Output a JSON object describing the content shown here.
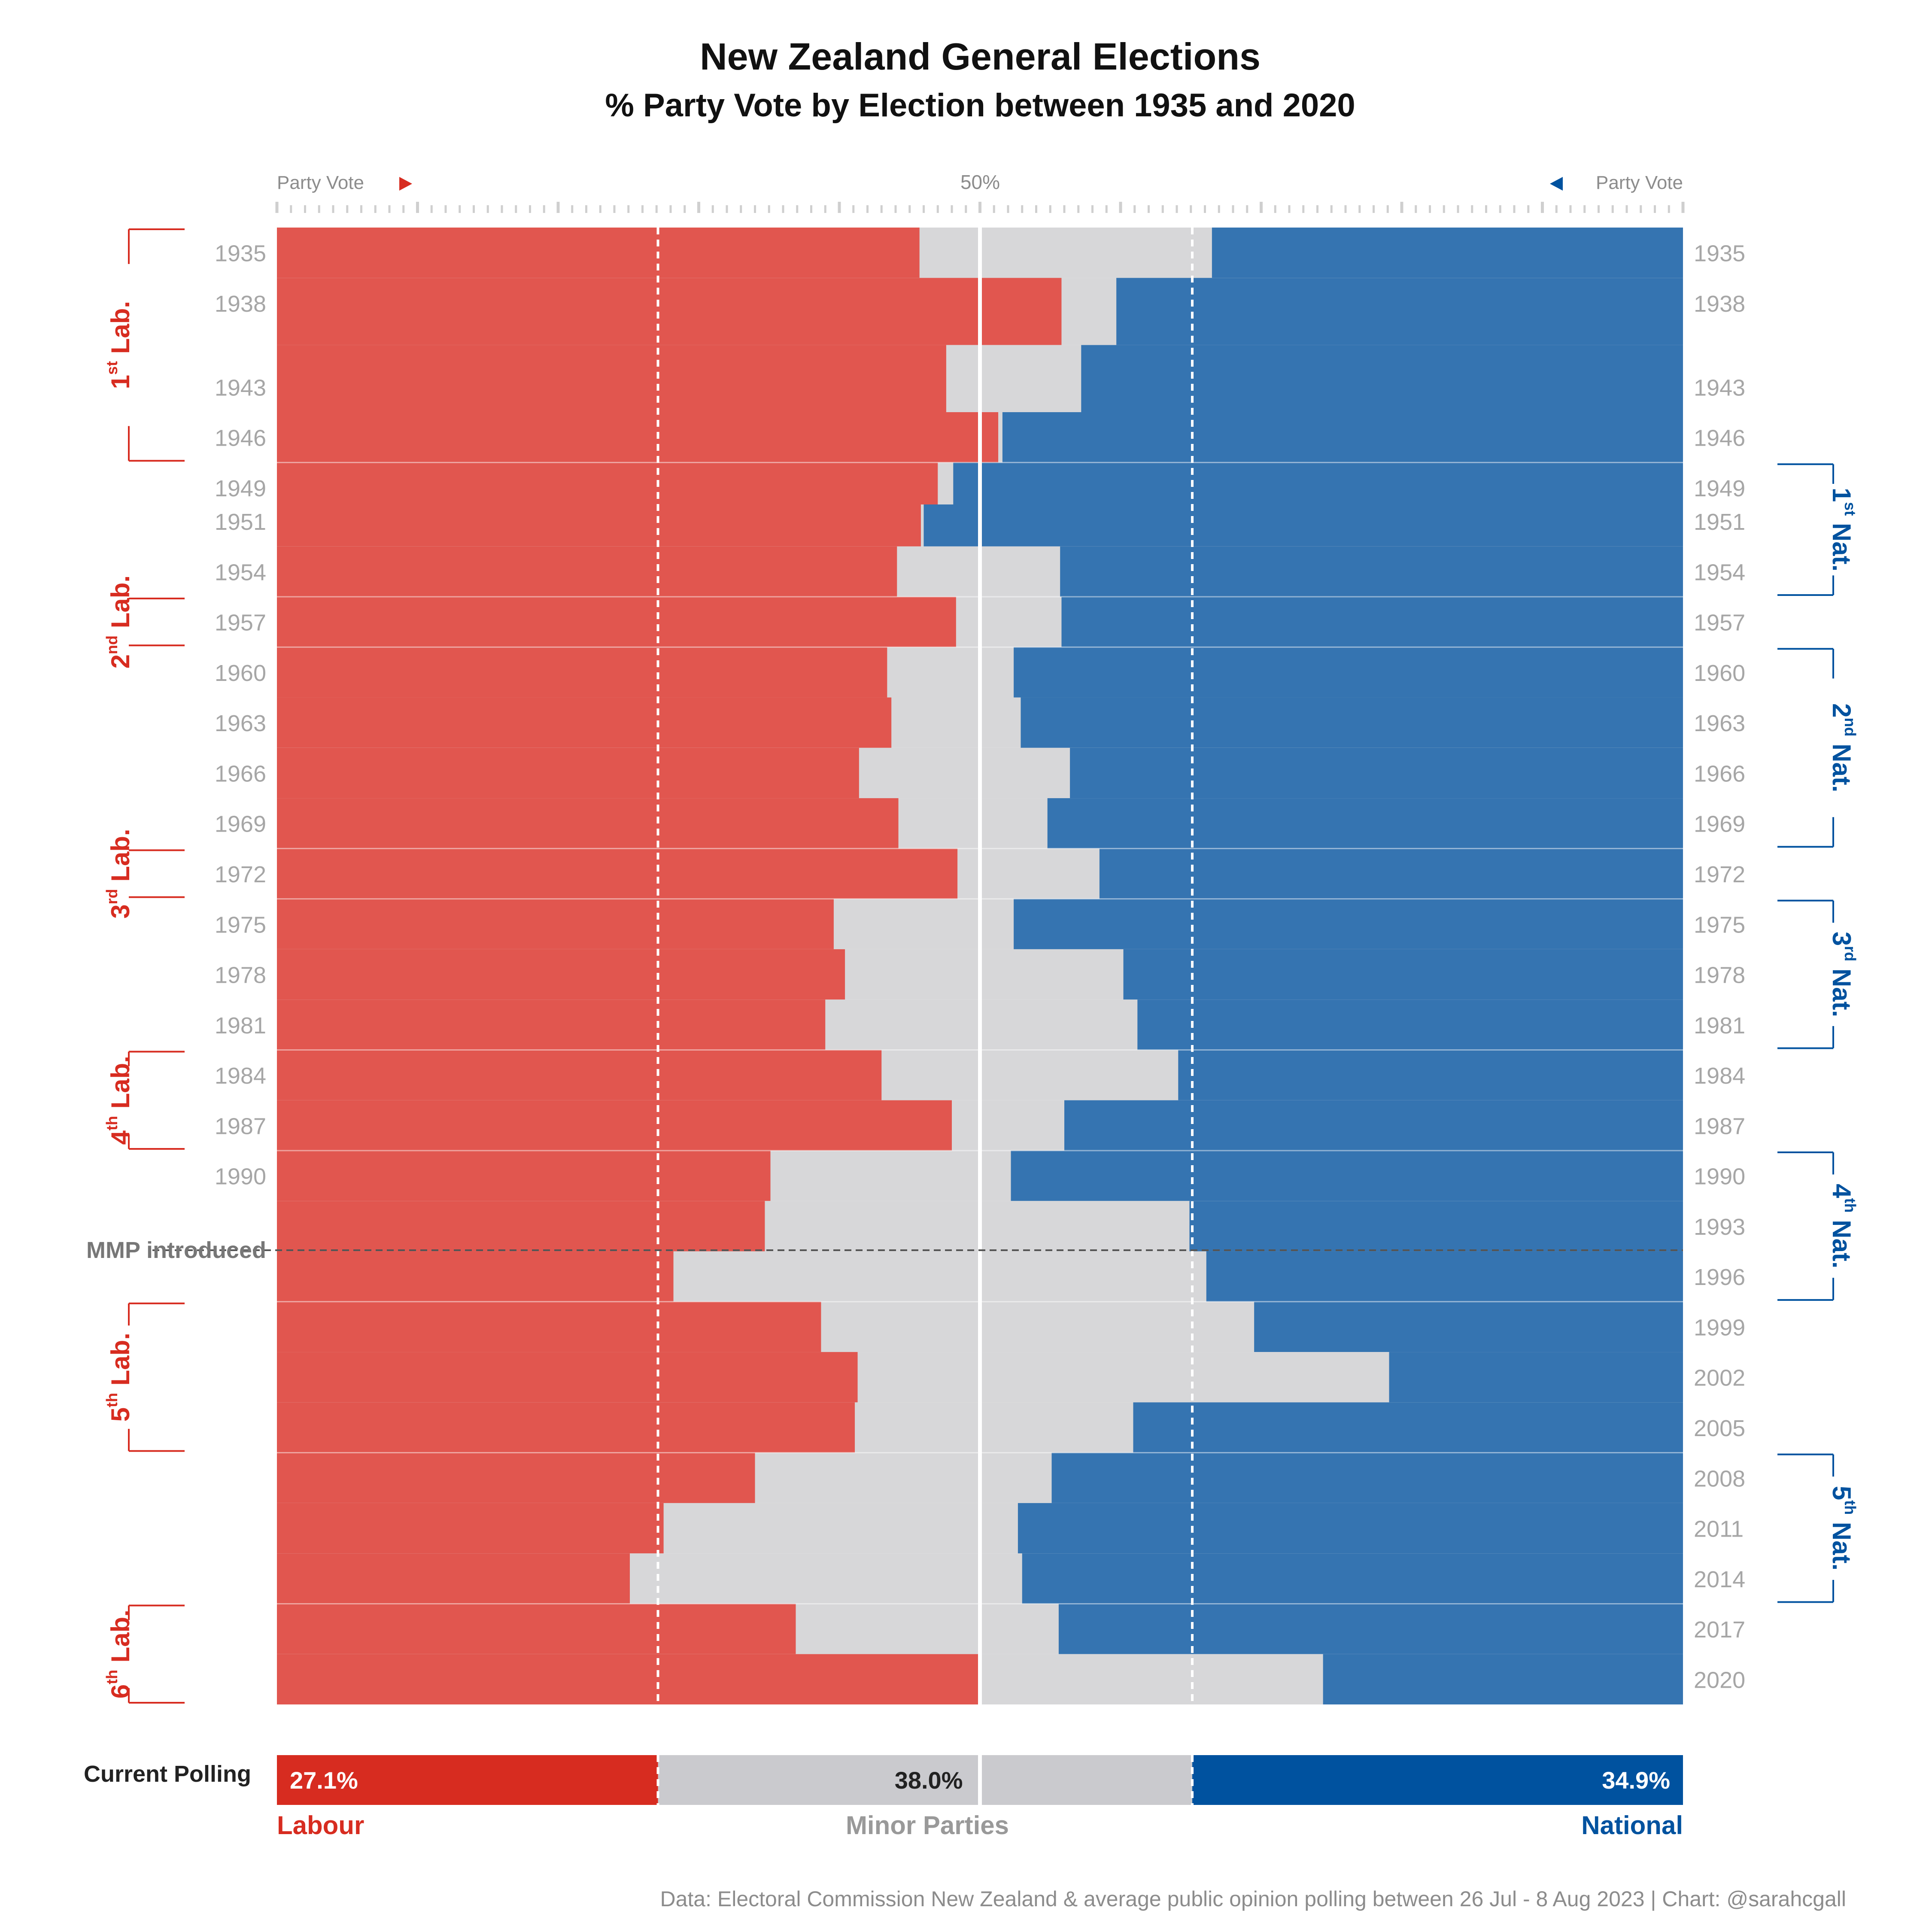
{
  "title": "New Zealand General Elections",
  "subtitle": "% Party Vote by Election between 1935 and 2020",
  "top_axis": {
    "left_label": "Party Vote",
    "center_label": "50%",
    "right_label": "Party Vote"
  },
  "mmp_label": "MMP introduced",
  "polling": {
    "label": "Current Polling",
    "labour_text": "27.1%",
    "minor_text": "38.0%",
    "national_text": "34.9%"
  },
  "legend": {
    "labour": "Labour",
    "minor": "Minor Parties",
    "national": "National"
  },
  "source": "Data: Electoral Commission New Zealand & average public opinion polling between 26 Jul - 8 Aug 2023  |  Chart: @sarahcgall",
  "colors": {
    "labour": "#E1564F",
    "minor": "#D7D7D9",
    "national": "#3574B1",
    "labour_dark": "#D72C20",
    "national_dark": "#00529F",
    "minor_dark": "#CACACE",
    "year_text": "#A6A6A6",
    "axis_text": "#8C8C8C"
  },
  "governments": {
    "labour": [
      {
        "ord": "1",
        "sup": "st",
        "name": "Lab.",
        "start_year": "1935",
        "end_year": "1946"
      },
      {
        "ord": "2",
        "sup": "nd",
        "name": "Lab.",
        "start_year": "1957",
        "end_year": "1957"
      },
      {
        "ord": "3",
        "sup": "rd",
        "name": "Lab.",
        "start_year": "1972",
        "end_year": "1972"
      },
      {
        "ord": "4",
        "sup": "th",
        "name": "Lab.",
        "start_year": "1984",
        "end_year": "1987"
      },
      {
        "ord": "5",
        "sup": "th",
        "name": "Lab.",
        "start_year": "1999",
        "end_year": "2005"
      },
      {
        "ord": "6",
        "sup": "th",
        "name": "Lab.",
        "start_year": "2017",
        "end_year": "2020"
      }
    ],
    "national": [
      {
        "ord": "1",
        "sup": "st",
        "name": "Nat.",
        "start_year": "1949",
        "end_year": "1954"
      },
      {
        "ord": "2",
        "sup": "nd",
        "name": "Nat.",
        "start_year": "1960",
        "end_year": "1969"
      },
      {
        "ord": "3",
        "sup": "rd",
        "name": "Nat.",
        "start_year": "1975",
        "end_year": "1981"
      },
      {
        "ord": "4",
        "sup": "th",
        "name": "Nat.",
        "start_year": "1990",
        "end_year": "1996"
      },
      {
        "ord": "5",
        "sup": "th",
        "name": "Nat.",
        "start_year": "2008",
        "end_year": "2014"
      }
    ]
  },
  "chart_data": {
    "type": "bar",
    "orientation": "horizontal-diverging",
    "title": "New Zealand General Elections",
    "subtitle": "% Party Vote by Election between 1935 and 2020",
    "xlim": [
      0,
      100
    ],
    "years": [
      "1935",
      "1938",
      "1943",
      "1946",
      "1949",
      "1951",
      "1954",
      "1957",
      "1960",
      "1963",
      "1966",
      "1969",
      "1972",
      "1975",
      "1978",
      "1981",
      "1984",
      "1987",
      "1990",
      "1993",
      "1996",
      "1999",
      "2002",
      "2005",
      "2008",
      "2011",
      "2014",
      "2017",
      "2020"
    ],
    "series": [
      {
        "name": "Labour",
        "values": [
          45.7,
          55.8,
          47.6,
          51.3,
          47.0,
          45.8,
          44.1,
          48.3,
          43.4,
          43.7,
          41.4,
          44.2,
          48.4,
          39.6,
          40.4,
          39.0,
          43.0,
          48.0,
          35.1,
          34.7,
          28.2,
          38.7,
          41.3,
          41.1,
          34.0,
          27.5,
          25.1,
          36.9,
          50.0
        ]
      },
      {
        "name": "National",
        "values": [
          33.5,
          40.3,
          42.8,
          48.4,
          51.9,
          54.0,
          44.3,
          44.2,
          47.6,
          47.1,
          43.6,
          45.2,
          41.5,
          47.6,
          39.8,
          38.8,
          35.9,
          44.0,
          47.8,
          35.1,
          33.9,
          30.5,
          20.9,
          39.1,
          44.9,
          47.3,
          47.0,
          44.4,
          25.6
        ]
      },
      {
        "name": "Minor Parties",
        "values": [
          20.8,
          3.9,
          9.6,
          0.3,
          1.1,
          0.2,
          11.6,
          7.5,
          9.0,
          9.2,
          15.0,
          10.6,
          10.1,
          12.8,
          19.8,
          22.2,
          21.1,
          8.0,
          17.1,
          30.2,
          37.9,
          30.8,
          37.8,
          19.8,
          21.1,
          25.2,
          27.9,
          18.7,
          24.4
        ]
      }
    ],
    "polling": {
      "Labour": 27.1,
      "Minor Parties": 38.0,
      "National": 34.9
    },
    "mmp_introduced_between": [
      "1993",
      "1996"
    ],
    "reference_lines": [
      27.1,
      50,
      65.1
    ],
    "legend": [
      "Labour",
      "Minor Parties",
      "National"
    ]
  }
}
